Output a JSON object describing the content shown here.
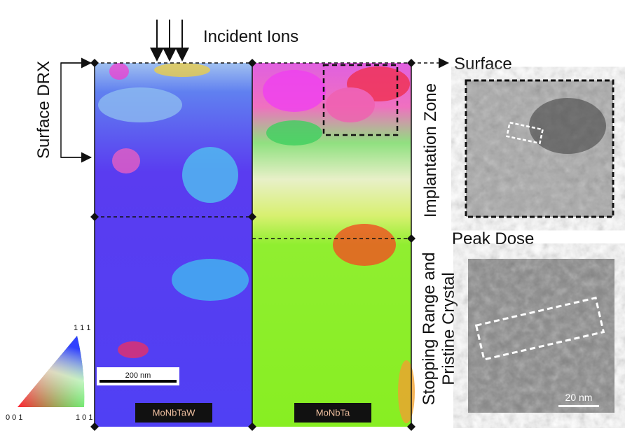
{
  "header": {
    "title": "Incident Ions"
  },
  "labels": {
    "surface": "Surface",
    "surface_drx": "Surface DRX",
    "implantation_zone": "Implantation Zone",
    "peak_dose": "Peak Dose",
    "stopping_range": [
      "Stopping Range and",
      "Pristine Crystal"
    ]
  },
  "maps": [
    {
      "label": "MoNbTaW"
    },
    {
      "label": "MoNbTa"
    }
  ],
  "scale_bars": {
    "ebsd": "200 nm",
    "tem": "20 nm"
  },
  "legend": {
    "top": "1 1 1",
    "left": "0 0 1",
    "right": "1 0 1"
  }
}
